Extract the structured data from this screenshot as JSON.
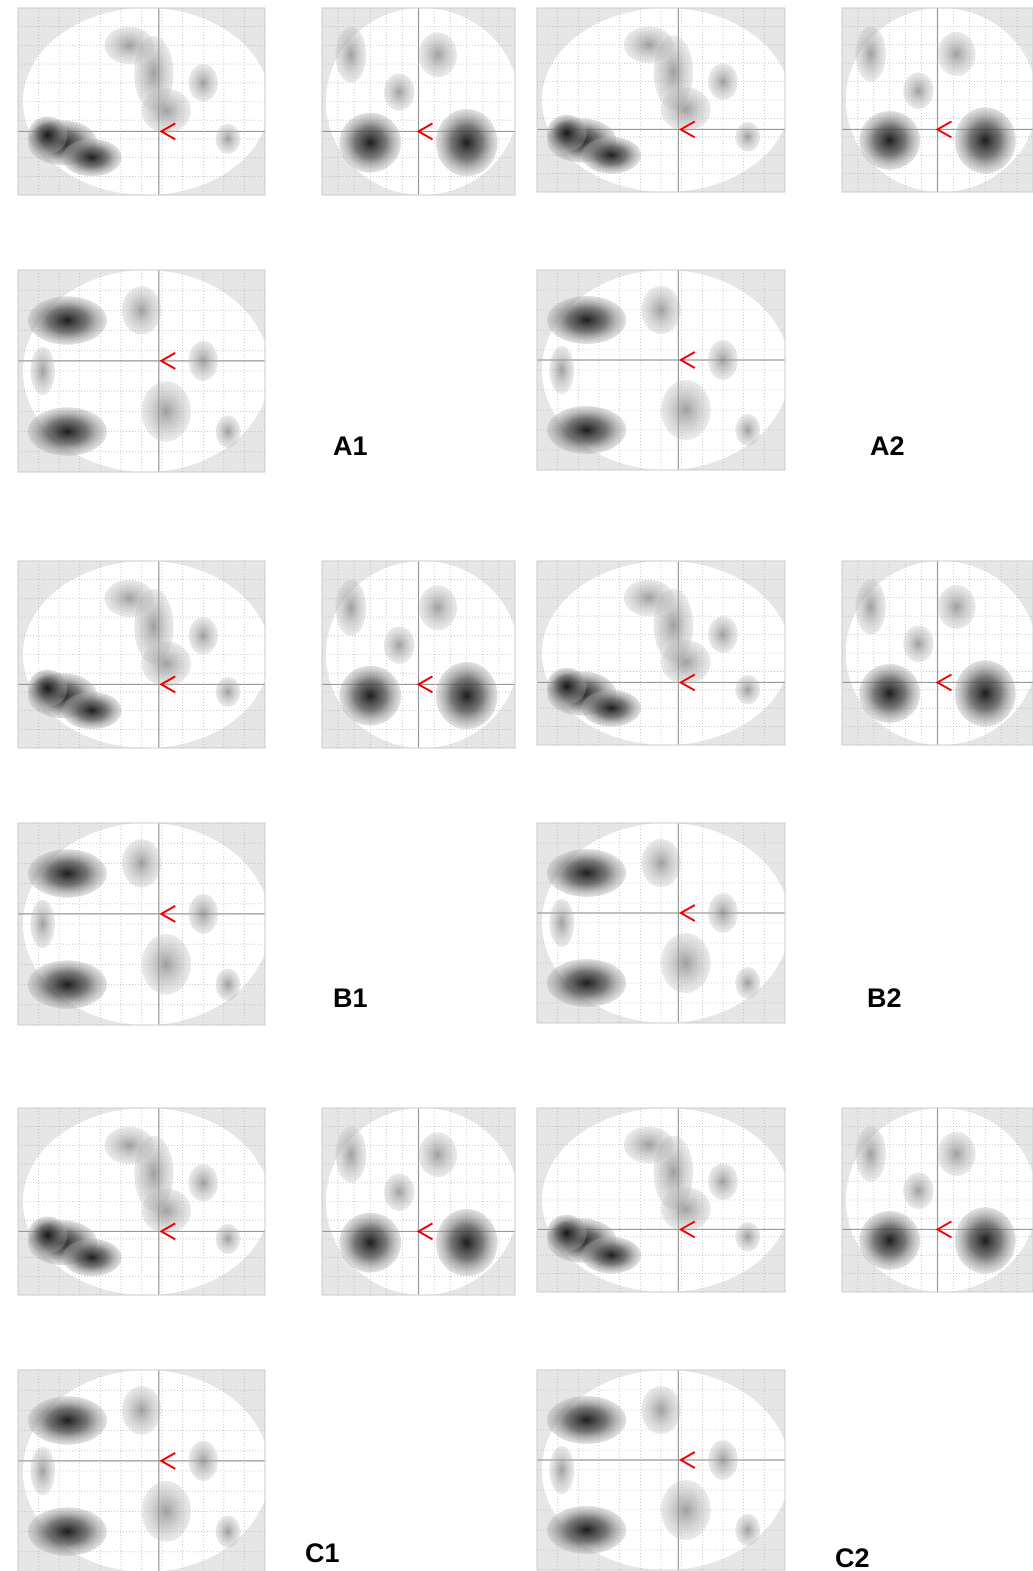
{
  "labels": [
    "A1",
    "A2",
    "B1",
    "B2",
    "C1",
    "C2"
  ]
}
